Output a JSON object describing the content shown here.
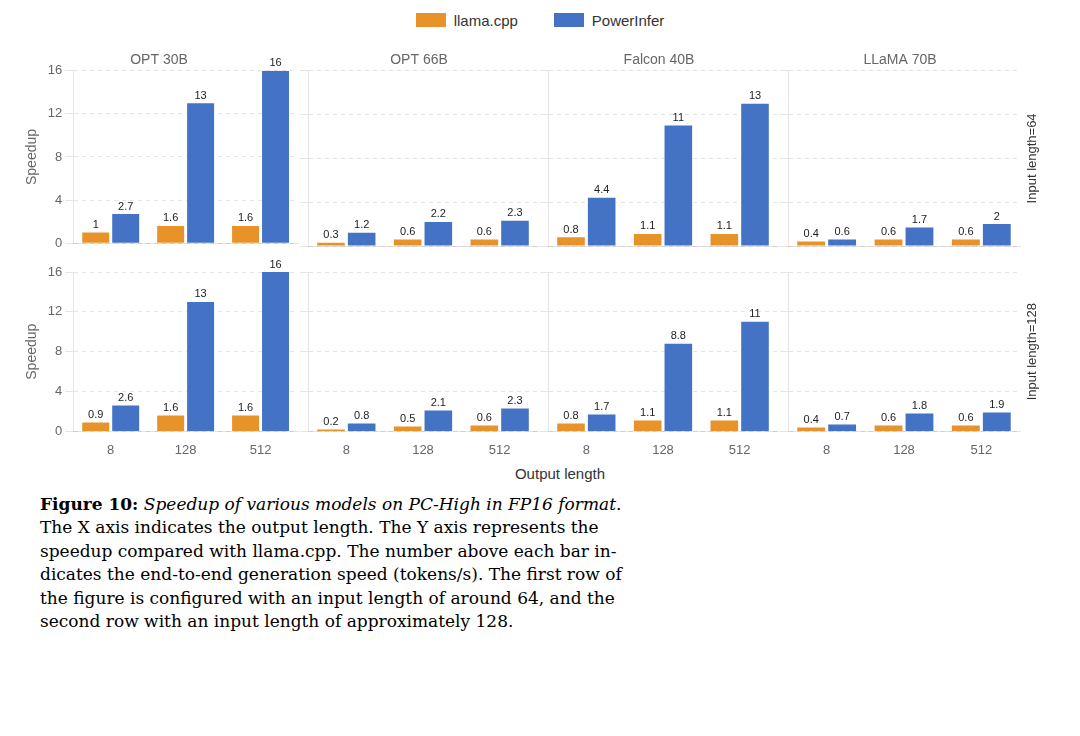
{
  "xlabel": "Output length",
  "annotations": [
    "Figure 10:",
    "Speedup of various models on PC-High in FP16 format.",
    "The X axis indicates the output length. The Y axis represents the",
    "speedup compared with llama.cpp. The number above each bar in-",
    "dicates the end-to-end generation speed (tokens/s). The first row of",
    "the figure is configured with an input length of around 64, and the",
    "second row with an input length of approximately 128."
  ],
  "chart_data": [
    {
      "type": "bar",
      "title": "OPT 30B",
      "categories": [
        "8",
        "128",
        "512"
      ],
      "series": [
        {
          "name": "llama.cpp",
          "color": "#E8922A",
          "values": [
            1,
            1.6,
            1.6
          ]
        },
        {
          "name": "PowerInfer",
          "color": "#4472C4",
          "values": [
            2.7,
            13,
            16
          ]
        }
      ],
      "ylim": [
        0,
        16
      ],
      "yticks": [
        0,
        4,
        8,
        12,
        16
      ],
      "grid": true,
      "data_labels": true,
      "tick_labels": "y",
      "ylabel": "Speedup",
      "legend": "top"
    },
    {
      "type": "bar",
      "title": "OPT 66B",
      "categories": [
        "8",
        "128",
        "512"
      ],
      "series": [
        {
          "name": "llama.cpp",
          "color": "#E8922A",
          "values": [
            0.3,
            0.6,
            0.6
          ]
        },
        {
          "name": "PowerInfer",
          "color": "#4472C4",
          "values": [
            1.2,
            2.2,
            2.3
          ]
        }
      ],
      "ylim": [
        0,
        16
      ],
      "yticks": [
        0,
        4,
        8,
        12,
        16
      ],
      "grid": true,
      "data_labels": true,
      "tick_labels": false
    },
    {
      "type": "bar",
      "title": "Falcon 40B",
      "categories": [
        "8",
        "128",
        "512"
      ],
      "series": [
        {
          "name": "llama.cpp",
          "color": "#E8922A",
          "values": [
            0.8,
            1.1,
            1.1
          ]
        },
        {
          "name": "PowerInfer",
          "color": "#4472C4",
          "values": [
            4.4,
            11,
            13
          ]
        }
      ],
      "ylim": [
        0,
        16
      ],
      "yticks": [
        0,
        4,
        8,
        12,
        16
      ],
      "grid": true,
      "data_labels": true,
      "tick_labels": false
    },
    {
      "type": "bar",
      "title": "LLaMA 70B",
      "categories": [
        "8",
        "128",
        "512"
      ],
      "series": [
        {
          "name": "llama.cpp",
          "color": "#E8922A",
          "values": [
            0.4,
            0.6,
            0.6
          ]
        },
        {
          "name": "PowerInfer",
          "color": "#4472C4",
          "values": [
            0.6,
            1.7,
            2
          ]
        }
      ],
      "ylim": [
        0,
        16
      ],
      "yticks": [
        0,
        4,
        8,
        12,
        16
      ],
      "grid": true,
      "data_labels": true,
      "tick_labels": false,
      "annotations": [
        "Input length=64"
      ]
    },
    {
      "type": "bar",
      "categories": [
        "8",
        "128",
        "512"
      ],
      "series": [
        {
          "name": "llama.cpp",
          "color": "#E8922A",
          "values": [
            0.9,
            1.6,
            1.6
          ]
        },
        {
          "name": "PowerInfer",
          "color": "#4472C4",
          "values": [
            2.6,
            13,
            16
          ]
        }
      ],
      "ylim": [
        0,
        16
      ],
      "yticks": [
        0,
        4,
        8,
        12,
        16
      ],
      "grid": true,
      "data_labels": true,
      "ylabel": "Speedup"
    },
    {
      "type": "bar",
      "categories": [
        "8",
        "128",
        "512"
      ],
      "series": [
        {
          "name": "llama.cpp",
          "color": "#E8922A",
          "values": [
            0.2,
            0.5,
            0.6
          ]
        },
        {
          "name": "PowerInfer",
          "color": "#4472C4",
          "values": [
            0.8,
            2.1,
            2.3
          ]
        }
      ],
      "ylim": [
        0,
        16
      ],
      "yticks": [
        0,
        4,
        8,
        12,
        16
      ],
      "grid": true,
      "data_labels": true,
      "tick_labels": "x"
    },
    {
      "type": "bar",
      "categories": [
        "8",
        "128",
        "512"
      ],
      "series": [
        {
          "name": "llama.cpp",
          "color": "#E8922A",
          "values": [
            0.8,
            1.1,
            1.1
          ]
        },
        {
          "name": "PowerInfer",
          "color": "#4472C4",
          "values": [
            1.7,
            8.8,
            11
          ]
        }
      ],
      "ylim": [
        0,
        16
      ],
      "yticks": [
        0,
        4,
        8,
        12,
        16
      ],
      "grid": true,
      "data_labels": true,
      "tick_labels": "x"
    },
    {
      "type": "bar",
      "categories": [
        "8",
        "128",
        "512"
      ],
      "series": [
        {
          "name": "llama.cpp",
          "color": "#E8922A",
          "values": [
            0.4,
            0.6,
            0.6
          ]
        },
        {
          "name": "PowerInfer",
          "color": "#4472C4",
          "values": [
            0.7,
            1.8,
            1.9
          ]
        }
      ],
      "ylim": [
        0,
        16
      ],
      "yticks": [
        0,
        4,
        8,
        12,
        16
      ],
      "grid": true,
      "data_labels": true,
      "tick_labels": "x",
      "annotations": [
        "Input length=128"
      ]
    }
  ]
}
